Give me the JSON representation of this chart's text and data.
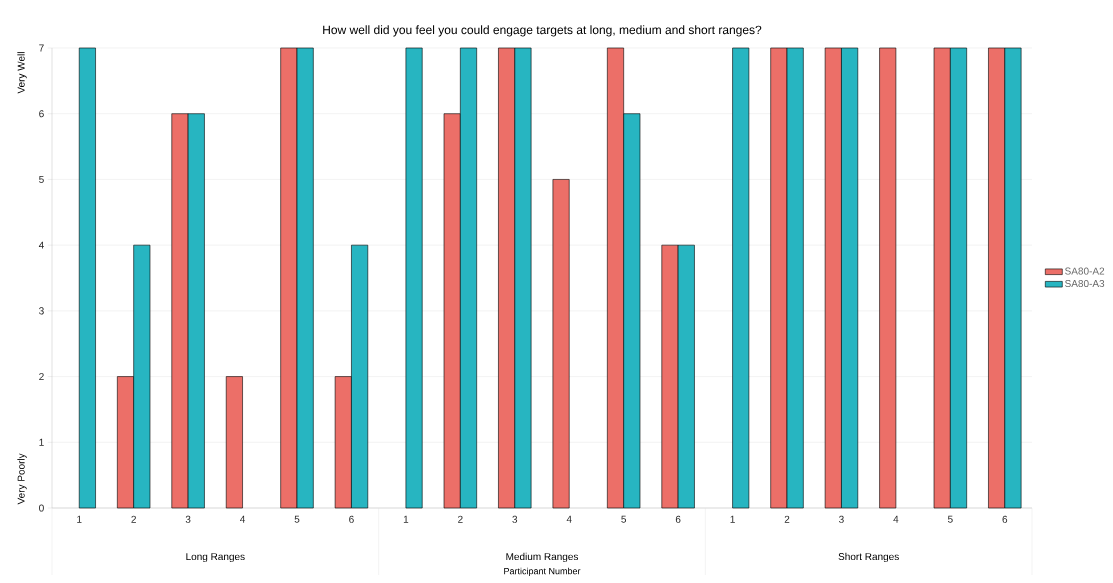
{
  "chart_data": {
    "type": "bar",
    "title": "How well did you feel you could engage targets at long, medium and short ranges?",
    "xlabel": "Participant Number",
    "categories": [
      "1",
      "2",
      "3",
      "4",
      "5",
      "6",
      "1",
      "2",
      "3",
      "4",
      "5",
      "6",
      "1",
      "2",
      "3",
      "4",
      "5",
      "6"
    ],
    "series": [
      {
        "name": "SA80-A2",
        "color": "#ec6f68",
        "values": [
          null,
          2,
          6,
          2,
          7,
          2,
          null,
          6,
          7,
          5,
          7,
          4,
          null,
          7,
          7,
          7,
          7,
          7
        ]
      },
      {
        "name": "SA80-A3",
        "color": "#27b5c1",
        "values": [
          7,
          4,
          6,
          null,
          7,
          4,
          7,
          7,
          7,
          null,
          6,
          4,
          7,
          7,
          7,
          null,
          7,
          7
        ]
      }
    ],
    "ylim": [
      0,
      7
    ],
    "yticks": [
      0,
      1,
      2,
      3,
      4,
      5,
      6,
      7
    ],
    "grid": "y",
    "legend": "right",
    "annotations": [
      "Very Well",
      "Very Poorly",
      "Long Ranges",
      "Medium Ranges",
      "Short Ranges"
    ]
  }
}
